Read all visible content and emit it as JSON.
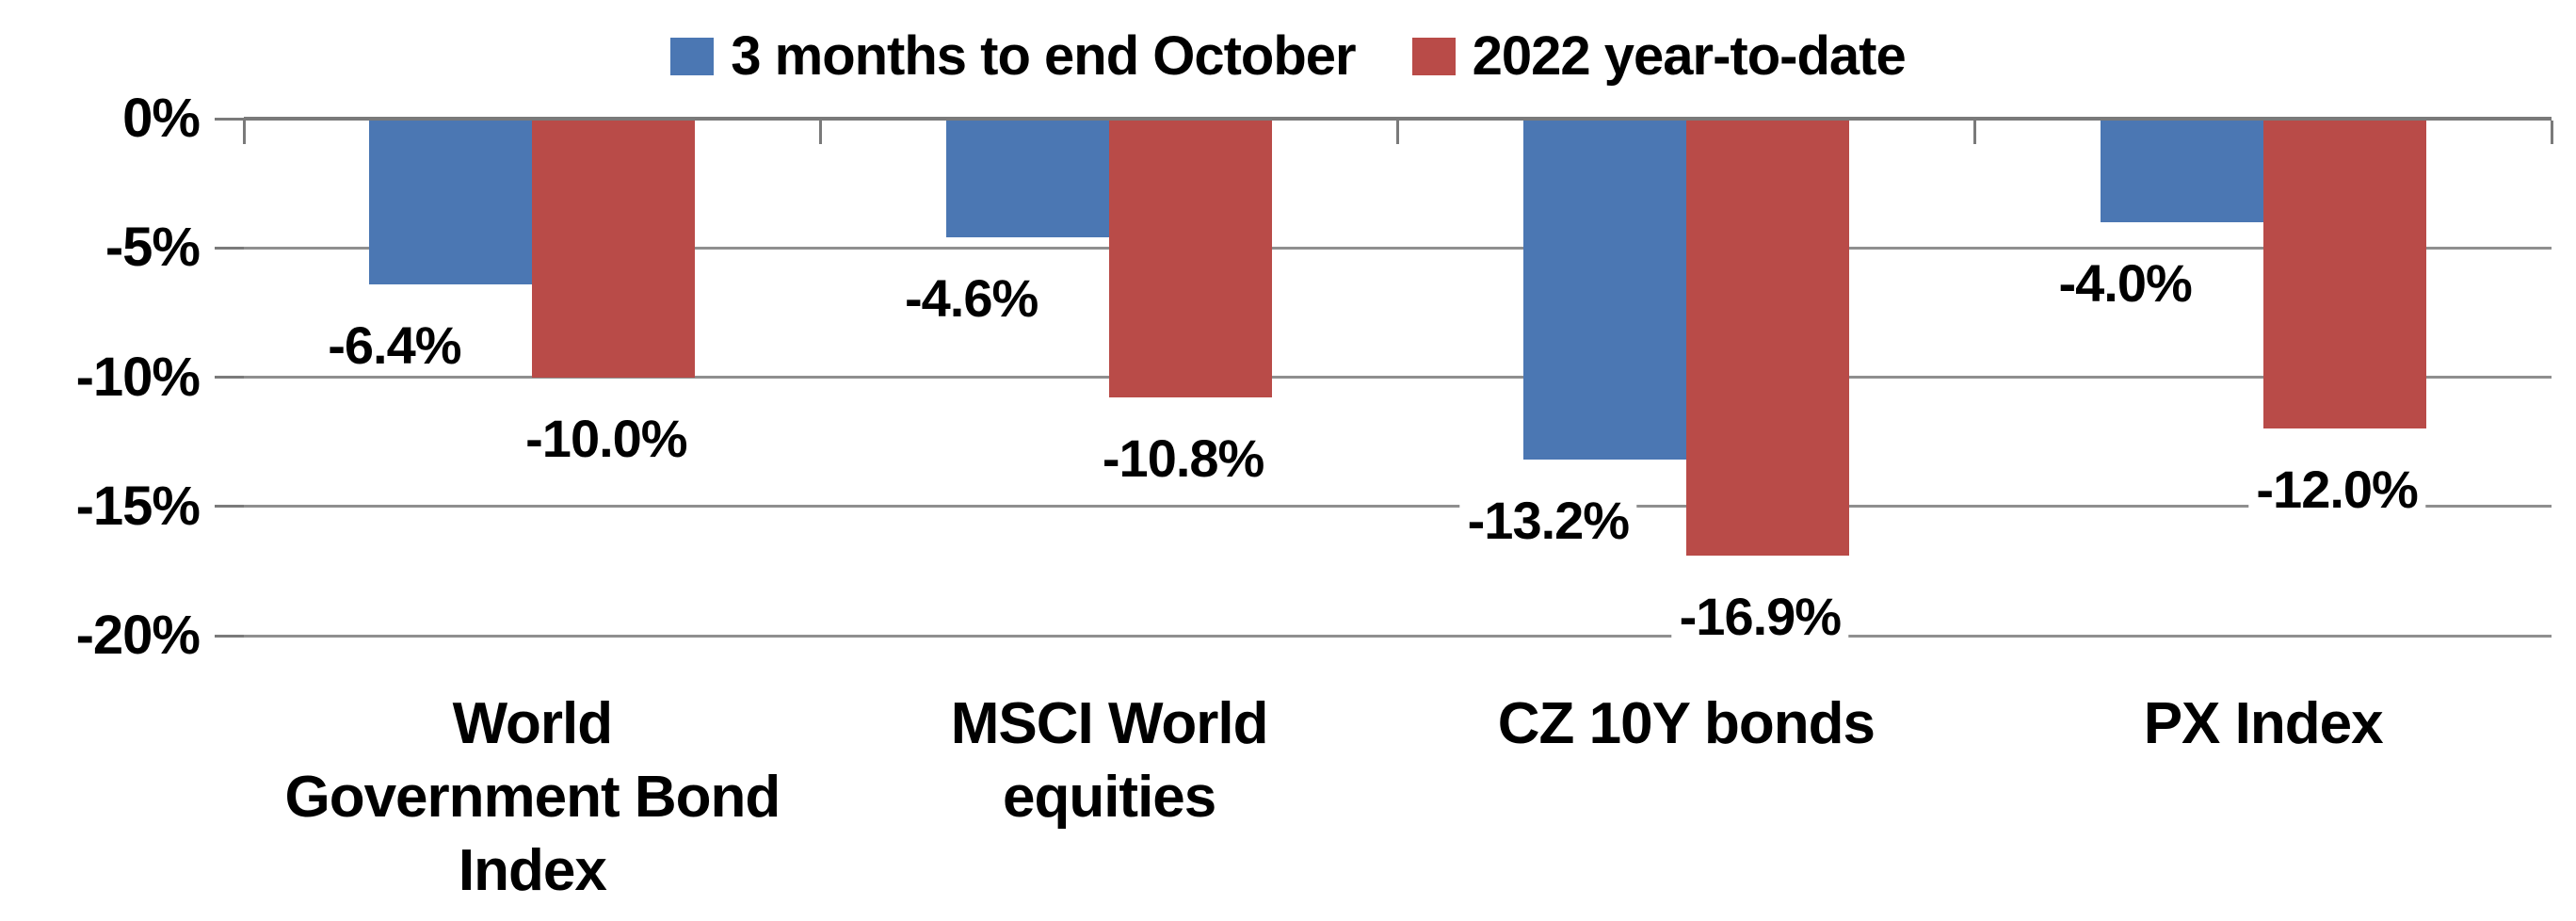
{
  "chart_data": {
    "type": "bar",
    "title": "",
    "orientation": "vertical",
    "categories": [
      "World Government Bond Index",
      "MSCI World equities",
      "CZ 10Y bonds",
      "PX Index"
    ],
    "category_display": [
      "World\nGovernment Bond\nIndex",
      "MSCI World\nequities",
      "CZ 10Y bonds",
      "PX Index"
    ],
    "series": [
      {
        "name": "3 months to end October",
        "color": "#4B77B3",
        "values": [
          -6.4,
          -4.6,
          -13.2,
          -4.0
        ],
        "data_labels": [
          "-6.4%",
          "-4.6%",
          "-13.2%",
          "-4.0%"
        ]
      },
      {
        "name": "2022 year-to-date",
        "color": "#B94B48",
        "values": [
          -10.0,
          -10.8,
          -16.9,
          -12.0
        ],
        "data_labels": [
          "-10.0%",
          "-10.8%",
          "-16.9%",
          "-12.0%"
        ]
      }
    ],
    "y_axis": {
      "min": -20,
      "max": 0,
      "tick_labels": [
        "0%",
        "-5%",
        "-10%",
        "-15%",
        "-20%"
      ],
      "tick_values": [
        0,
        -5,
        -10,
        -15,
        -20
      ]
    },
    "grid": true,
    "legend_position": "top",
    "colors": {
      "gridline": "#8F8F8F",
      "axis_line": "#7A7A7A",
      "text": "#000000",
      "background": "#FFFFFF"
    }
  }
}
